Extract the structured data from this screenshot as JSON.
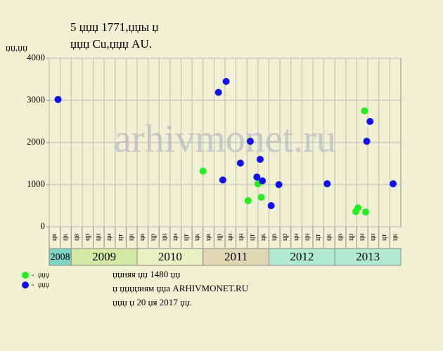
{
  "chart_data": {
    "type": "scatter",
    "title": "5 џџџ 1771,џџы џ",
    "subtitle": "џџџ Cu,џџџ AU.",
    "y_label": "џџ,џџ",
    "watermark": "arhivmonet.ru",
    "categories": [
      "ця",
      "цк",
      "цв",
      "цр",
      "цн",
      "цн",
      "цт",
      "цк",
      "цв",
      "цр",
      "цн",
      "цн",
      "цт",
      "цк",
      "цв",
      "цр",
      "цн",
      "цн",
      "цт",
      "цк",
      "цв",
      "цр",
      "цн",
      "цн",
      "цт",
      "цк",
      "цв",
      "цр",
      "цн",
      "цн",
      "цт",
      "цк"
    ],
    "years": [
      {
        "label": "2008",
        "span": 2,
        "color": "#80d4c4"
      },
      {
        "label": "2009",
        "span": 6,
        "color": "#d4eaa4"
      },
      {
        "label": "2010",
        "span": 6,
        "color": "#eaf0c4"
      },
      {
        "label": "2011",
        "span": 6,
        "color": "#e0d8b4"
      },
      {
        "label": "2012",
        "span": 6,
        "color": "#b0ead0"
      },
      {
        "label": "2013",
        "span": 6,
        "color": "#b0ead0"
      }
    ],
    "xlim": [
      0,
      32
    ],
    "ylim": [
      0,
      4000
    ],
    "yticks": [
      0,
      1000,
      2000,
      3000,
      4000
    ],
    "grid": true,
    "series": [
      {
        "name": "џџџ",
        "color": "#22ee22",
        "x": [
          14.0,
          18.1,
          19.0,
          19.3,
          27.9,
          28.1,
          28.7,
          28.8
        ],
        "values": [
          1320,
          620,
          1020,
          700,
          360,
          450,
          2750,
          350
        ]
      },
      {
        "name": "џџџ",
        "color": "#1111ee",
        "x": [
          0.8,
          15.4,
          16.1,
          15.8,
          17.4,
          18.3,
          18.9,
          19.2,
          19.4,
          20.2,
          20.9,
          25.3,
          28.9,
          29.2,
          31.3
        ],
        "values": [
          3020,
          3190,
          3450,
          1110,
          1510,
          2030,
          1180,
          1600,
          1090,
          500,
          1000,
          1020,
          2030,
          2500,
          1020
        ]
      }
    ],
    "notes": [
      "џџняя џџ 1480 џџ",
      "џ џџџџиям џџа ARHIVMONET.RU",
      "џџџ џ 20 џя 2017 џџ."
    ]
  }
}
